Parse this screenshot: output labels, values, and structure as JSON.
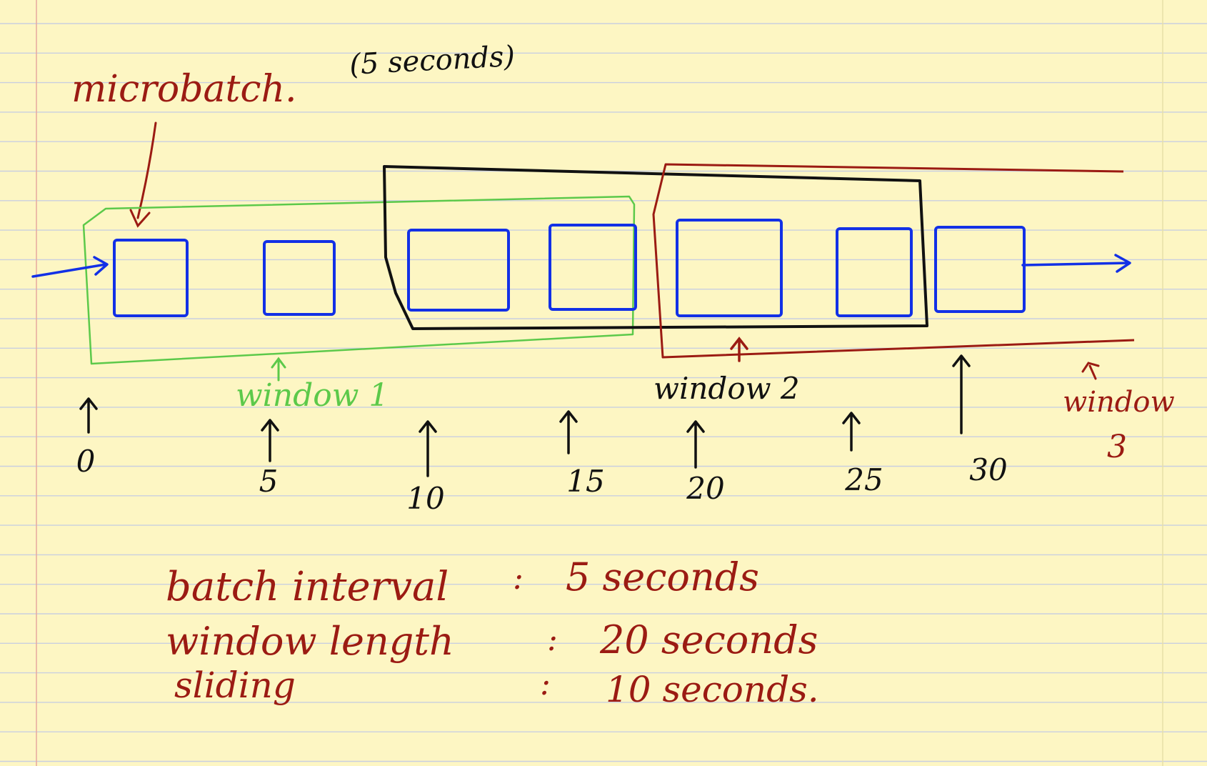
{
  "colors": {
    "paper": "#fdf6c3",
    "rule_line": "#c9cfe0",
    "margin_line": "#e7a9a0",
    "red_ink": "#9b1b13",
    "green_ink": "#5cc94a",
    "black_ink": "#111111",
    "blue_ink": "#1230e6"
  },
  "title": {
    "microbatch": "microbatch.",
    "duration": "(5 seconds)"
  },
  "windows": [
    {
      "label": "window 1",
      "color": "green"
    },
    {
      "label": "window 2",
      "color": "black"
    },
    {
      "label": "window 3",
      "label_lines": [
        "window",
        "3"
      ],
      "color": "red"
    }
  ],
  "ticks": [
    "0",
    "5",
    "10",
    "15",
    "20",
    "25",
    "30"
  ],
  "notes": [
    {
      "label": "batch interval",
      "separator": ":",
      "value": "5 seconds"
    },
    {
      "label": "window length",
      "separator": ":",
      "value": "20 seconds"
    },
    {
      "label": "sliding",
      "separator": ":",
      "value": "10 seconds."
    }
  ],
  "icons": {
    "input_arrow": "right-arrow-icon",
    "output_arrow": "right-arrow-icon",
    "tick_arrow": "up-arrow-icon"
  }
}
